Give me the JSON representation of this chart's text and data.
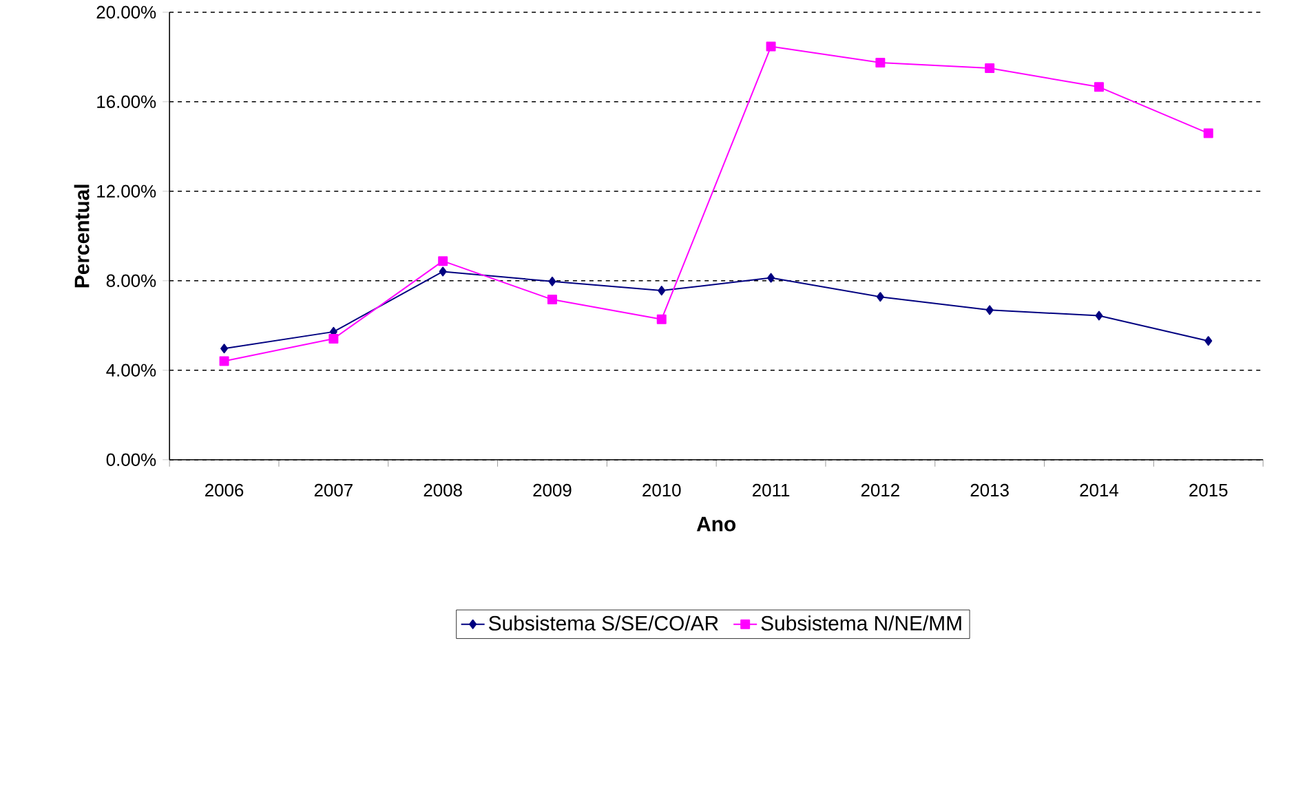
{
  "chart_data": {
    "type": "line",
    "xlabel": "Ano",
    "ylabel": "Percentual",
    "categories": [
      "2006",
      "2007",
      "2008",
      "2009",
      "2010",
      "2011",
      "2012",
      "2013",
      "2014",
      "2015"
    ],
    "series": [
      {
        "name": "Subsistema S/SE/CO/AR",
        "color": "#000080",
        "marker": "diamond",
        "values": [
          4.97,
          5.72,
          8.41,
          7.97,
          7.56,
          8.13,
          7.28,
          6.69,
          6.44,
          5.31
        ]
      },
      {
        "name": "Subsistema N/NE/MM",
        "color": "#ff00ff",
        "marker": "square",
        "values": [
          4.41,
          5.41,
          8.88,
          7.16,
          6.28,
          18.47,
          17.75,
          17.5,
          16.66,
          14.59
        ]
      }
    ],
    "ylim": [
      0,
      20
    ],
    "yticks": [
      {
        "value": 0,
        "label": "0.00%"
      },
      {
        "value": 4,
        "label": "4.00%"
      },
      {
        "value": 8,
        "label": "8.00%"
      },
      {
        "value": 12,
        "label": "12.00%"
      },
      {
        "value": 16,
        "label": "16.00%"
      },
      {
        "value": 20,
        "label": "20.00%"
      }
    ],
    "grid": "y",
    "line_style": "solid",
    "legend": "bottom"
  }
}
